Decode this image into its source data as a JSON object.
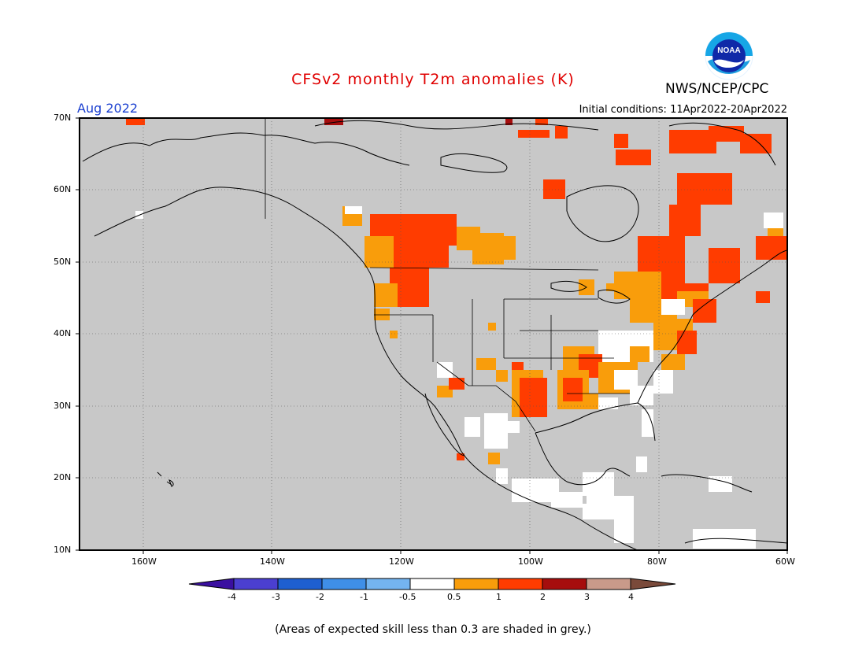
{
  "header": {
    "title": "CFSv2 monthly T2m anomalies (K)",
    "month": "Aug 2022",
    "initial_conditions": "Initial conditions: 11Apr2022-20Apr2022",
    "agency": "NWS/NCEP/CPC",
    "logo_text": "NOAA"
  },
  "axes": {
    "lat_labels": [
      "70N",
      "60N",
      "50N",
      "40N",
      "30N",
      "20N",
      "10N"
    ],
    "lon_labels": [
      "160W",
      "140W",
      "120W",
      "100W",
      "80W",
      "60W"
    ]
  },
  "colorbar": {
    "labels": [
      "-4",
      "-3",
      "-2",
      "-1",
      "-0.5",
      "0.5",
      "1",
      "2",
      "3",
      "4"
    ],
    "colors": {
      "lt_-4": "#3a0fa0",
      "-4_-3": "#4b3fd0",
      "-3_-2": "#1e5fd0",
      "-2_-1": "#3f8fe8",
      "-1_-0.5": "#74b4f0",
      "-0.5_0.5": "#ffffff",
      "0.5_1": "#f99d0b",
      "1_2": "#ff3c00",
      "2_3": "#a60d0d",
      "3_4": "#c99a8a",
      "gt_4": "#7a4a3a"
    }
  },
  "map": {
    "land_fill": "#c8c8c8",
    "ocean_fill": "#c8c8c8",
    "skill_grey": "#c8c8c8"
  },
  "footnote": "(Areas of expected skill less than 0.3 are shaded in grey.)"
}
